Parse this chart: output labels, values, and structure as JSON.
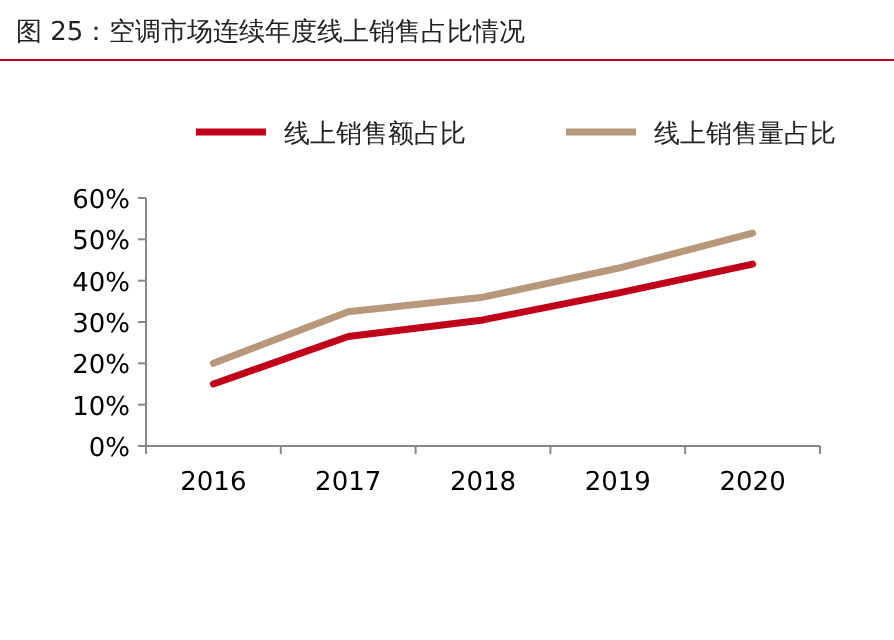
{
  "chart_data": {
    "type": "line",
    "title": "图 25：空调市场连续年度线上销售占比情况",
    "categories": [
      "2016",
      "2017",
      "2018",
      "2019",
      "2020"
    ],
    "series": [
      {
        "name": "线上销售额占比",
        "color": "#c00018",
        "values": [
          15,
          26.5,
          30.5,
          37,
          44
        ]
      },
      {
        "name": "线上销售量占比",
        "color": "#b8987a",
        "values": [
          20,
          32.5,
          36,
          43,
          51.5
        ]
      }
    ],
    "ylim": [
      0,
      60
    ],
    "yticks": [
      {
        "value": 0,
        "label": "0%"
      },
      {
        "value": 10,
        "label": "10%"
      },
      {
        "value": 20,
        "label": "20%"
      },
      {
        "value": 30,
        "label": "30%"
      },
      {
        "value": 40,
        "label": "40%"
      },
      {
        "value": 50,
        "label": "50%"
      },
      {
        "value": 60,
        "label": "60%"
      }
    ],
    "legend": "top",
    "grid": false,
    "marker": "none",
    "line_style": "solid"
  }
}
